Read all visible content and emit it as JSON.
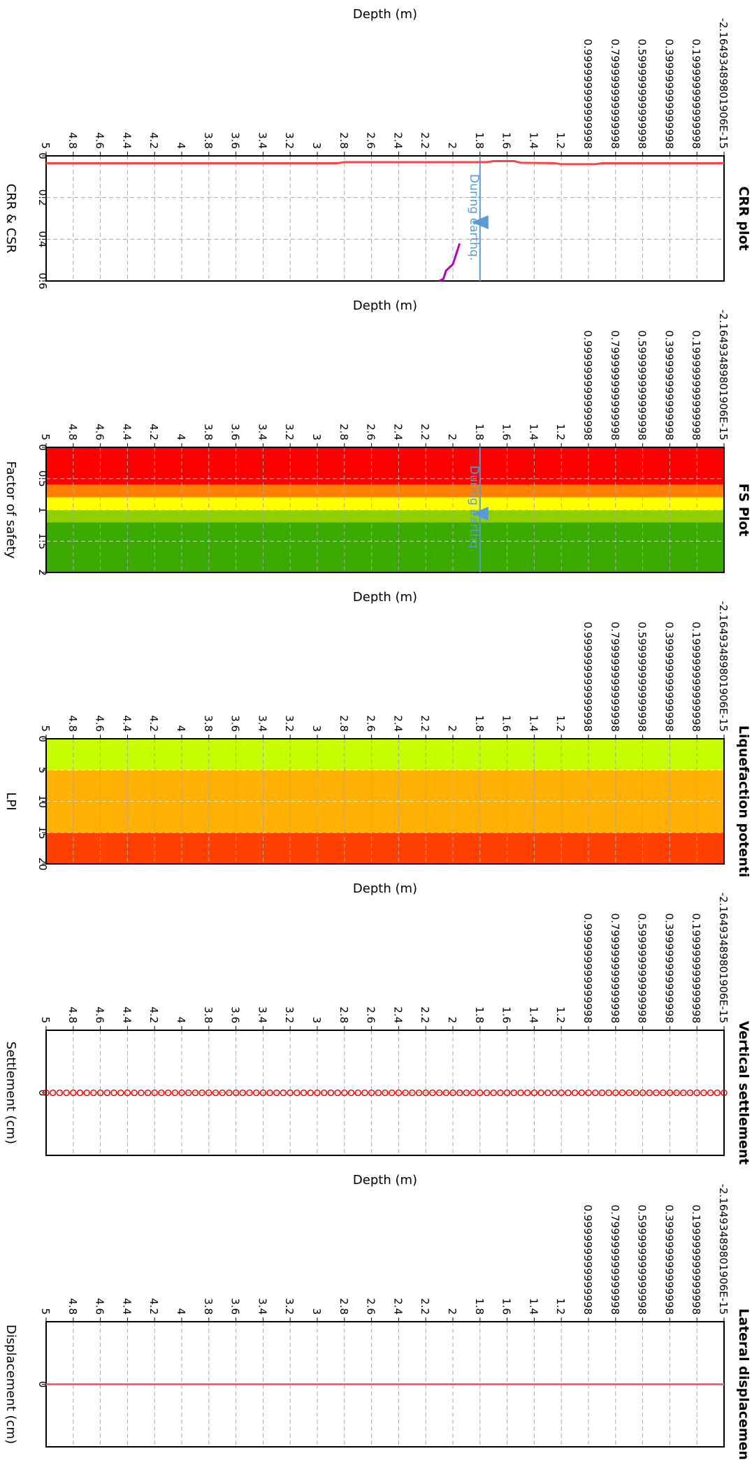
{
  "colors": {
    "axis": "#000000",
    "grid": "#a8a8a8",
    "crr_line": "#ff4444",
    "csr_line": "#bb00bb",
    "gwt": "#5b9bd5",
    "fs_bands": [
      "#ff0000",
      "#ff8000",
      "#ffff00",
      "#90d000",
      "#3aaa00"
    ],
    "lpi_bands": [
      "#c8ff00",
      "#ffb000",
      "#ff4000"
    ],
    "settlement": "#ff0000",
    "displacement": "#ff6060"
  },
  "panels": [
    {
      "title": "CRR plot",
      "xlabel": "Depth (m)",
      "ylabel": "CRR & CSR",
      "ticks": [
        "-2.16493489801906E-15",
        "0.199999999999998",
        "0.399999999999998",
        "0.599999999999998",
        "0.799999999999998",
        "0.999999999999998",
        "1.2",
        "1.4",
        "1.6",
        "1.8",
        "2",
        "2.2",
        "2.4",
        "2.6",
        "2.8",
        "3",
        "3.2",
        "3.4",
        "3.6",
        "3.8",
        "4",
        "4.2",
        "4.4",
        "4.6",
        "4.8",
        "5"
      ],
      "vticks": [
        "0",
        "0.2",
        "0.4",
        "0.6"
      ],
      "annotation": "During earthq."
    },
    {
      "title": "FS Plot",
      "xlabel": "Depth (m)",
      "ylabel": "Factor of safety",
      "ticks": [
        "-2.16493489801906E-15",
        "0.199999999999998",
        "0.399999999999998",
        "0.599999999999998",
        "0.799999999999998",
        "0.999999999999998",
        "1.2",
        "1.4",
        "1.6",
        "1.8",
        "2",
        "2.2",
        "2.4",
        "2.6",
        "2.8",
        "3",
        "3.2",
        "3.4",
        "3.6",
        "3.8",
        "4",
        "4.2",
        "4.4",
        "4.6",
        "4.8",
        "5"
      ],
      "vticks": [
        "0",
        "0.5",
        "1",
        "1.5",
        "2"
      ],
      "annotation": "During earthq."
    },
    {
      "title": "Liquefaction potenti",
      "xlabel": "Depth (m)",
      "ylabel": "LPI",
      "ticks": [
        "-2.16493489801906E-15",
        "0.199999999999998",
        "0.399999999999998",
        "0.599999999999998",
        "0.799999999999998",
        "0.999999999999998",
        "1.2",
        "1.4",
        "1.6",
        "1.8",
        "2",
        "2.2",
        "2.4",
        "2.6",
        "2.8",
        "3",
        "3.2",
        "3.4",
        "3.6",
        "3.8",
        "4",
        "4.2",
        "4.4",
        "4.6",
        "4.8",
        "5"
      ],
      "vticks": [
        "0",
        "5",
        "10",
        "15",
        "20"
      ],
      "annotation": ""
    },
    {
      "title": "Vertical settlement",
      "xlabel": "Depth (m)",
      "ylabel": "Settlement (cm)",
      "ticks": [
        "-2.16493489801906E-15",
        "0.199999999999998",
        "0.399999999999998",
        "0.599999999999998",
        "0.799999999999998",
        "0.999999999999998",
        "1.2",
        "1.4",
        "1.6",
        "1.8",
        "2",
        "2.2",
        "2.4",
        "2.6",
        "2.8",
        "3",
        "3.2",
        "3.4",
        "3.6",
        "3.8",
        "4",
        "4.2",
        "4.4",
        "4.6",
        "4.8",
        "5"
      ],
      "vticks": [
        "0"
      ],
      "annotation": ""
    },
    {
      "title": "Lateral displacemen",
      "xlabel": "Depth (m)",
      "ylabel": "Displacement (cm)",
      "ticks": [
        "-2.16493489801906E-15",
        "0.199999999999998",
        "0.399999999999998",
        "0.599999999999998",
        "0.799999999999998",
        "0.999999999999998",
        "1.2",
        "1.4",
        "1.6",
        "1.8",
        "2",
        "2.2",
        "2.4",
        "2.6",
        "2.8",
        "3",
        "3.2",
        "3.4",
        "3.6",
        "3.8",
        "4",
        "4.2",
        "4.4",
        "4.6",
        "4.8",
        "5"
      ],
      "vticks": [
        "0"
      ],
      "annotation": ""
    }
  ],
  "chart_data": [
    {
      "type": "line",
      "title": "CRR plot",
      "xlabel": "Depth (m)",
      "ylabel": "CRR & CSR",
      "xlim": [
        0,
        5
      ],
      "ylim": [
        0,
        0.6
      ],
      "gwt_depth": 1.8,
      "series": [
        {
          "x": [
            0,
            0.9,
            0.95,
            1.2,
            1.25,
            1.5,
            1.55,
            1.7,
            1.75,
            1.95,
            2.8,
            2.85,
            5
          ],
          "values": [
            0.035,
            0.035,
            0.04,
            0.04,
            0.035,
            0.033,
            0.025,
            0.025,
            0.03,
            0.03,
            0.03,
            0.035,
            0.035
          ]
        },
        {
          "x": [
            1.95,
            2.0,
            2.05,
            2.07,
            2.1
          ],
          "values": [
            0.42,
            0.52,
            0.55,
            0.59,
            0.6
          ]
        }
      ]
    },
    {
      "type": "area",
      "title": "FS Plot",
      "xlabel": "Depth (m)",
      "ylabel": "Factor of safety",
      "xlim": [
        0,
        5
      ],
      "ylim": [
        0,
        2
      ],
      "gwt_depth": 1.8,
      "bands": [
        [
          0,
          0.6
        ],
        [
          0.6,
          0.8
        ],
        [
          0.8,
          1.0
        ],
        [
          1.0,
          1.2
        ],
        [
          1.2,
          2.0
        ]
      ]
    },
    {
      "type": "area",
      "title": "Liquefaction potenti",
      "xlabel": "Depth (m)",
      "ylabel": "LPI",
      "xlim": [
        0,
        5
      ],
      "ylim": [
        0,
        20
      ],
      "bands": [
        [
          0,
          5
        ],
        [
          5,
          15
        ],
        [
          15,
          20
        ]
      ]
    },
    {
      "type": "scatter",
      "title": "Vertical settlement",
      "xlabel": "Depth (m)",
      "ylabel": "Settlement (cm)",
      "xlim": [
        0,
        5
      ],
      "ylim": [
        -1,
        1
      ],
      "y_constant": 0
    },
    {
      "type": "line",
      "title": "Lateral displacemen",
      "xlabel": "Depth (m)",
      "ylabel": "Displacement (cm)",
      "xlim": [
        0,
        5
      ],
      "ylim": [
        -1,
        1
      ],
      "series": [
        {
          "x": [
            0,
            5
          ],
          "values": [
            0,
            0
          ]
        }
      ]
    }
  ]
}
